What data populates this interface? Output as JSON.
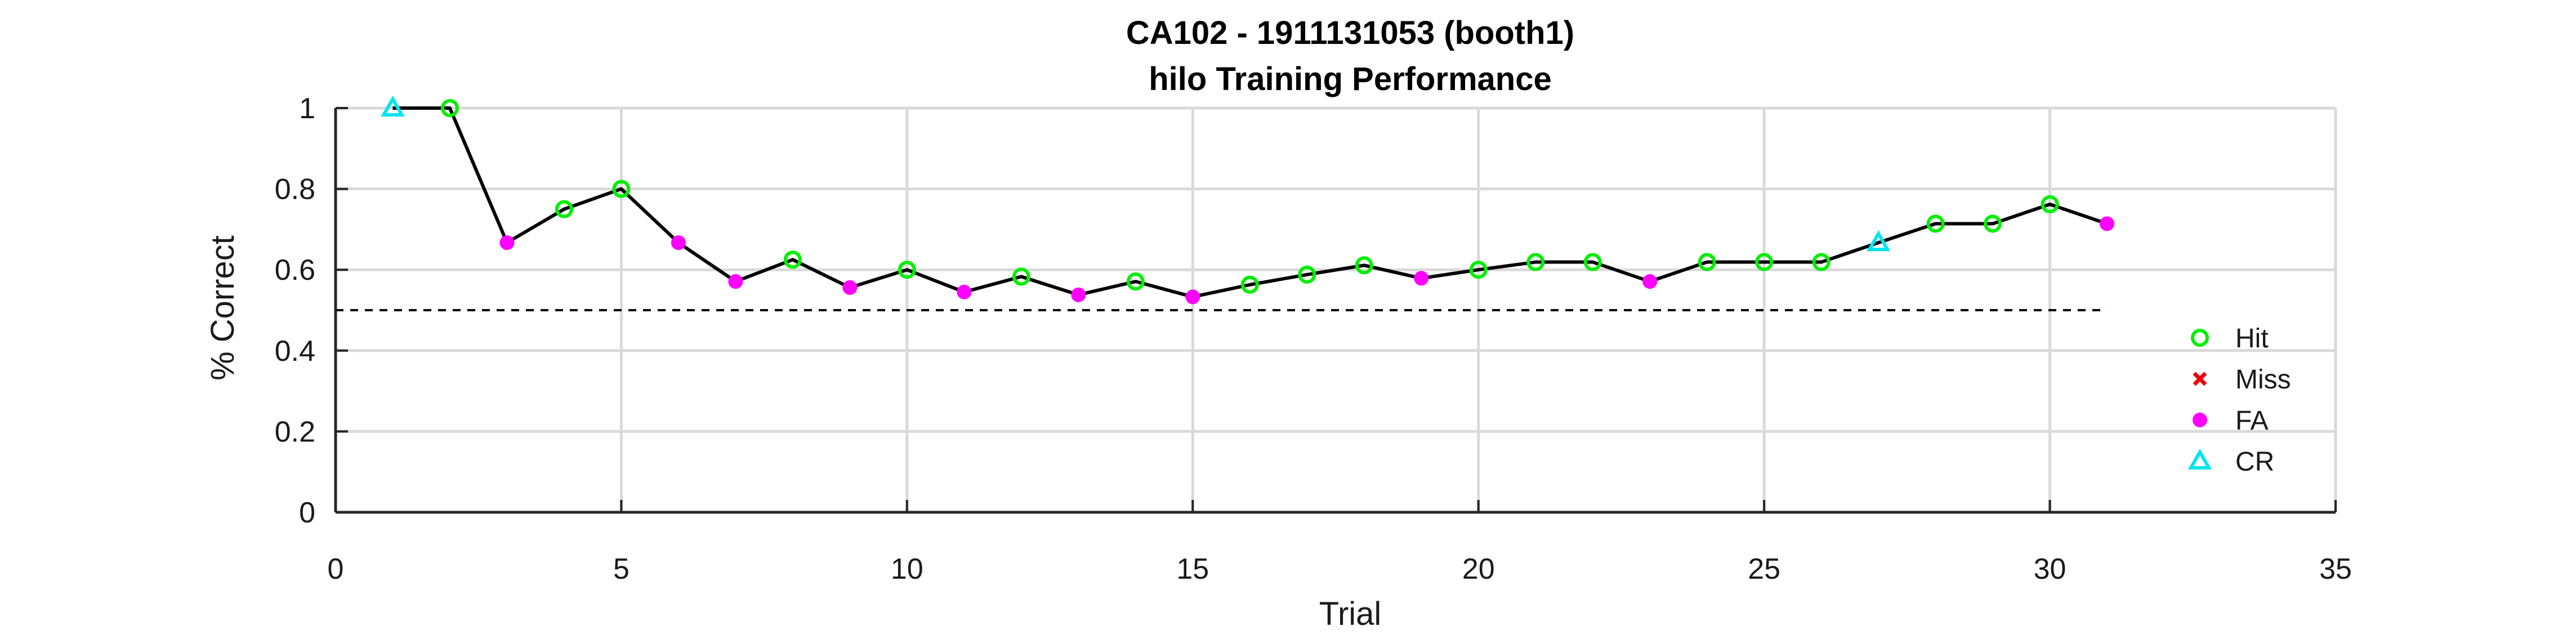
{
  "chart_data": {
    "type": "line",
    "title": [
      "CA102 - 1911131053 (booth1)",
      "hilo Training Performance"
    ],
    "xlabel": "Trial",
    "ylabel": "% Correct",
    "xlim": [
      0,
      35
    ],
    "ylim": [
      0,
      1
    ],
    "xticks": [
      0,
      5,
      10,
      15,
      20,
      25,
      30,
      35
    ],
    "yticks": [
      0,
      0.2,
      0.4,
      0.6,
      0.8,
      1
    ],
    "grid": true,
    "legend_position": "right",
    "chance_line": 0.5,
    "series": [
      {
        "name": "performance",
        "x": [
          1,
          2,
          3,
          4,
          5,
          6,
          7,
          8,
          9,
          10,
          11,
          12,
          13,
          14,
          15,
          16,
          17,
          18,
          19,
          20,
          21,
          22,
          23,
          24,
          25,
          26,
          27,
          28,
          29,
          30,
          31
        ],
        "y": [
          1.0,
          1.0,
          0.667,
          0.75,
          0.8,
          0.667,
          0.571,
          0.625,
          0.556,
          0.6,
          0.545,
          0.583,
          0.538,
          0.571,
          0.533,
          0.563,
          0.588,
          0.611,
          0.579,
          0.6,
          0.619,
          0.619,
          0.571,
          0.619,
          0.619,
          0.619,
          0.667,
          0.714,
          0.714,
          0.762,
          0.714
        ],
        "outcome": [
          "CR",
          "Hit",
          "FA",
          "Hit",
          "Hit",
          "FA",
          "FA",
          "Hit",
          "FA",
          "Hit",
          "FA",
          "Hit",
          "FA",
          "Hit",
          "FA",
          "Hit",
          "Hit",
          "Hit",
          "FA",
          "Hit",
          "Hit",
          "Hit",
          "FA",
          "Hit",
          "Hit",
          "Hit",
          "CR",
          "Hit",
          "Hit",
          "Hit",
          "FA"
        ]
      }
    ],
    "legend": [
      {
        "label": "Hit",
        "marker": "circle-open",
        "color": "#00ee00"
      },
      {
        "label": "Miss",
        "marker": "x",
        "color": "#ee0000"
      },
      {
        "label": "FA",
        "marker": "dot",
        "color": "#ff00ff"
      },
      {
        "label": "CR",
        "marker": "triangle-open",
        "color": "#00e5ee"
      }
    ],
    "colors": {
      "line": "#000000",
      "grid": "#d9d9d9",
      "axis": "#262626"
    }
  }
}
